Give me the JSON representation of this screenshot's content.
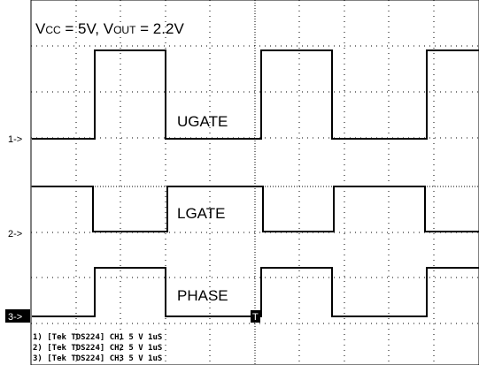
{
  "header": {
    "title": {
      "v1": "V",
      "sub1": "CC",
      "mid": " = 5V, V",
      "sub2": "OUT",
      "end": " = 2.2V"
    }
  },
  "traces": [
    {
      "marker": "1->",
      "label": "UGATE"
    },
    {
      "marker": "2->",
      "label": "LGATE"
    },
    {
      "marker": "3->",
      "label": "PHASE"
    }
  ],
  "trigger": "T",
  "footer": [
    "1) [Tek TDS224] CH1  5 V   1uS",
    "2) [Tek TDS224] CH2  5 V   1uS",
    "3) [Tek TDS224] CH3  5 V   1uS"
  ]
}
